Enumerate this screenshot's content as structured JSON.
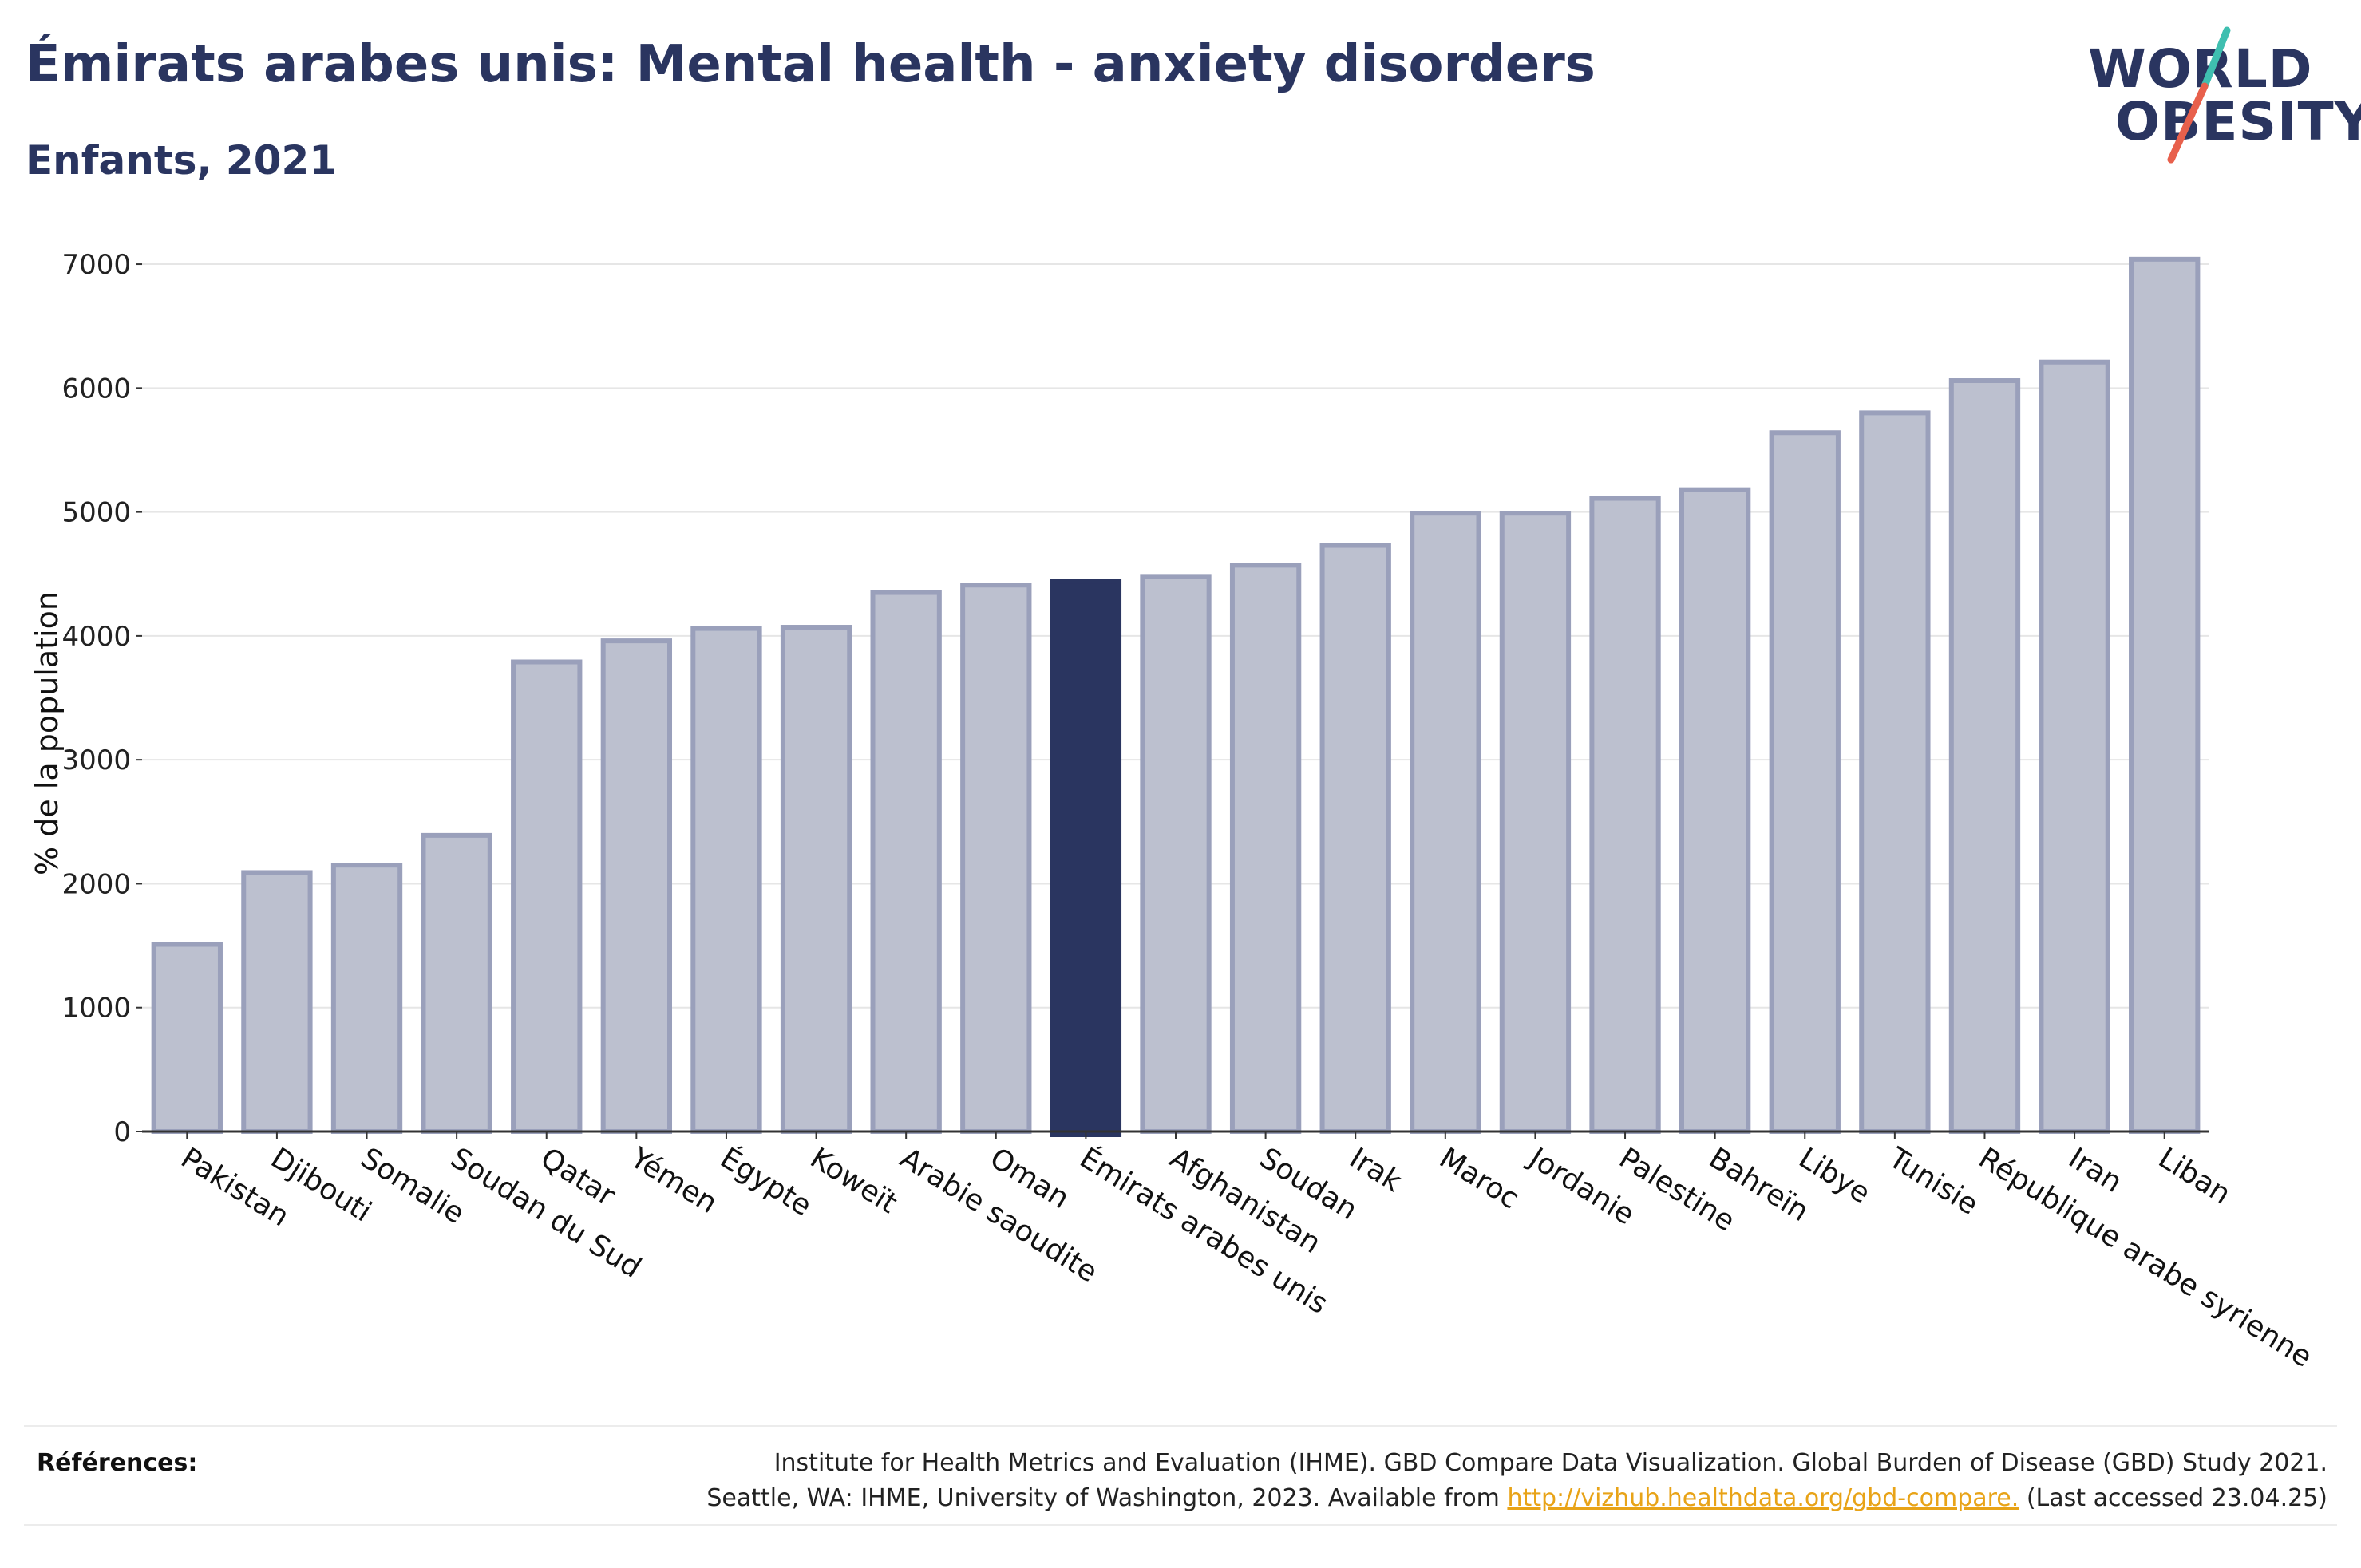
{
  "header": {
    "title": "Émirats arabes unis: Mental health - anxiety disorders",
    "subtitle": "Enfants, 2021"
  },
  "logo": {
    "line1": "WORLD",
    "line2": "OBESITY",
    "colors": {
      "text": "#2a3560",
      "slash_top": "#3fbfb0",
      "slash_bottom": "#e8604c"
    }
  },
  "chart_data": {
    "type": "bar",
    "ylabel": "% de la population",
    "xlabel": "",
    "ylim": [
      0,
      7200
    ],
    "yticks": [
      0,
      1000,
      2000,
      3000,
      4000,
      5000,
      6000,
      7000
    ],
    "grid": true,
    "highlight": "Émirats arabes unis",
    "colors": {
      "bar": "#bcc0cf",
      "bar_edge": "#9aa0bb",
      "highlight": "#2a3560",
      "grid": "#e6e6e6",
      "axis": "#333333"
    },
    "categories": [
      "Pakistan",
      "Djibouti",
      "Somalie",
      "Soudan du Sud",
      "Qatar",
      "Yémen",
      "Égypte",
      "Koweït",
      "Arabie saoudite",
      "Oman",
      "Émirats arabes unis",
      "Afghanistan",
      "Soudan",
      "Irak",
      "Maroc",
      "Jordanie",
      "Palestine",
      "Bahreïn",
      "Libye",
      "Tunisie",
      "République arabe syrienne",
      "Iran",
      "Liban"
    ],
    "values": [
      1510,
      2090,
      2150,
      2390,
      3790,
      3960,
      4060,
      4070,
      4350,
      4410,
      4440,
      4480,
      4570,
      4730,
      4990,
      4990,
      5110,
      5180,
      5640,
      5800,
      6060,
      6210,
      7040
    ]
  },
  "references": {
    "label": "Références:",
    "line1": "Institute for Health Metrics and Evaluation (IHME). GBD Compare Data Visualization. Global Burden of Disease (GBD) Study 2021.",
    "line2_pre": "Seattle, WA: IHME, University of Washington, 2023. Available from ",
    "link": "http://vizhub.healthdata.org/gbd-compare.",
    "line2_post": " (Last accessed 23.04.25)"
  }
}
